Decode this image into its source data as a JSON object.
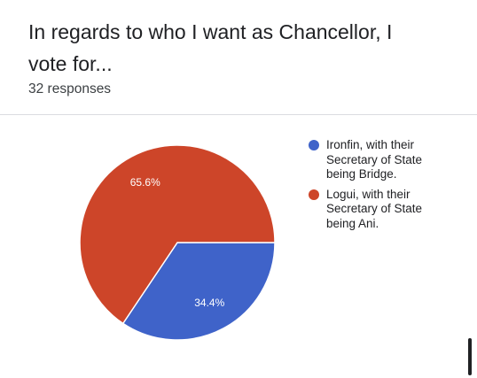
{
  "question": {
    "title": "In regards to who I want as Chancellor, I vote for...",
    "responses_text": "32 responses"
  },
  "chart_data": {
    "type": "pie",
    "categories": [
      "Ironfin, with their Secretary of State being Bridge.",
      "Logui, with their Secretary of State being Ani."
    ],
    "values": [
      34.4,
      65.6
    ],
    "value_labels": [
      "34.4%",
      "65.6%"
    ],
    "colors": [
      "#3f63c9",
      "#cd4529"
    ],
    "legend_position": "right",
    "title": ""
  }
}
